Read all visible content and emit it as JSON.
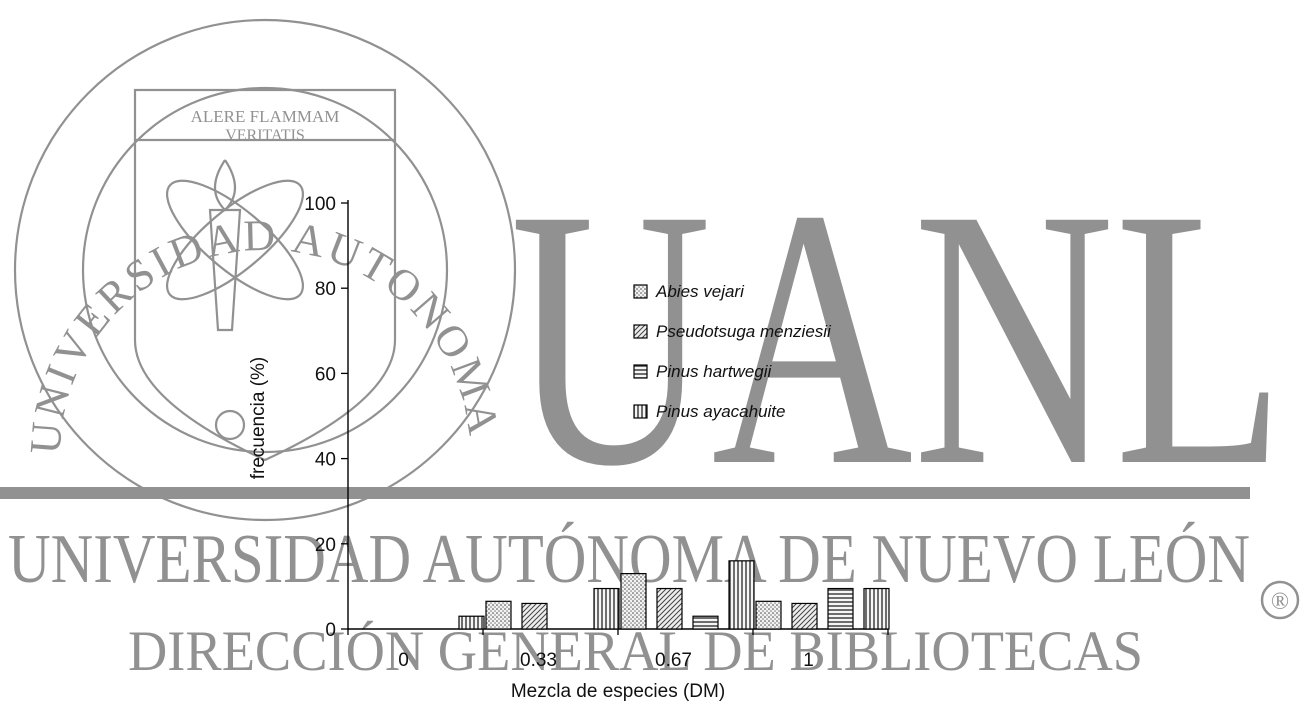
{
  "watermark": {
    "seal_motto_line1": "ALERE FLAMMAM",
    "seal_motto_line2": "VERITATIS",
    "seal_ring_text": "UNIVERSIDAD AUTONOMA DE NUEVO LEON",
    "big_letters": "UANL",
    "line1": "UNIVERSIDAD AUTÓNOMA DE NUEVO LEÓN",
    "line2": "DIRECCIÓN GENERAL DE BIBLIOTECAS",
    "registered_mark": "®",
    "color": "#8c8c8c"
  },
  "chart_data": {
    "type": "bar",
    "xlabel": "Mezcla de especies (DM)",
    "ylabel": "frecuencia (%)",
    "ylim": [
      0,
      100
    ],
    "yticks": [
      "0",
      "20",
      "40",
      "60",
      "80",
      "100"
    ],
    "categories": [
      "0",
      "0.33",
      "0.67",
      "1"
    ],
    "legend_position": "right",
    "series": [
      {
        "name": "Abies vejari",
        "pattern": "dots",
        "values": [
          0,
          6.5,
          13,
          6.5
        ]
      },
      {
        "name": "Pseudotsuga menziesii",
        "pattern": "diag",
        "values": [
          0,
          6,
          9.5,
          6
        ]
      },
      {
        "name": "Pinus hartwegii",
        "pattern": "hlines",
        "values": [
          0,
          0,
          3,
          9.5
        ]
      },
      {
        "name": "Pinus ayacahuite",
        "pattern": "vlines",
        "values": [
          3,
          9.5,
          16,
          9.5
        ]
      }
    ]
  }
}
